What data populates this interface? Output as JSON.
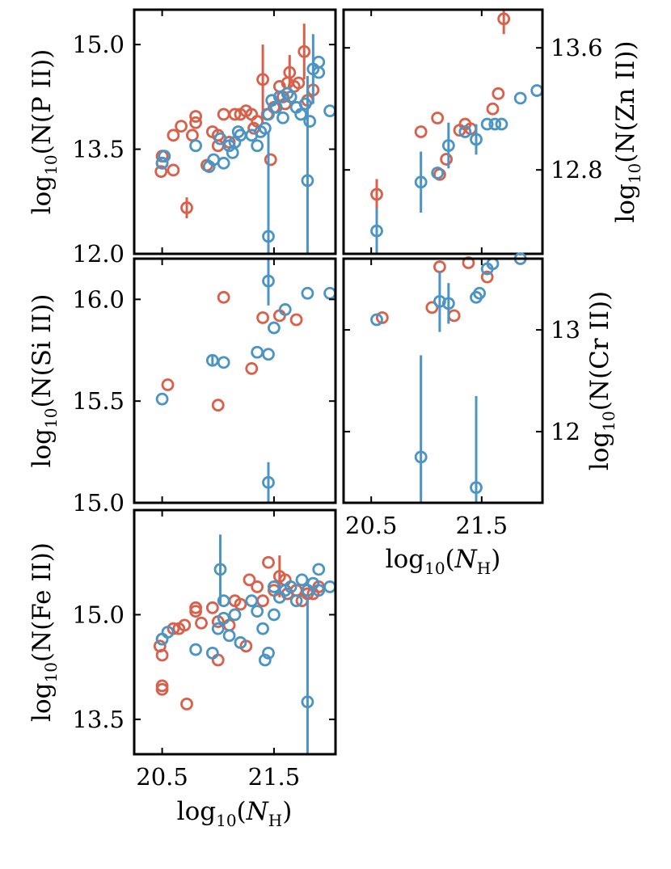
{
  "figure": {
    "colors": {
      "red": "#d9604a",
      "blue": "#4b94c4"
    },
    "xlabel": {
      "prefix": "log",
      "sub": "10",
      "open": "(",
      "N": "N",
      "nsub": "H",
      "close": ")"
    }
  },
  "chart_data": [
    {
      "id": "p2",
      "type": "scatter",
      "ylabel": {
        "prefix": "log",
        "sub": "10",
        "body": "(N(P II))"
      },
      "xlim": [
        20.25,
        22.05
      ],
      "ylim": [
        12.0,
        15.5
      ],
      "xticks": [
        20.5,
        21.5
      ],
      "xtick_labels": [
        "",
        ""
      ],
      "yticks": [
        12.0,
        13.5,
        15.0
      ],
      "ytick_labels": [
        "12.0",
        "13.5",
        "15.0"
      ],
      "series": [
        {
          "name": "red",
          "points": [
            {
              "x": 20.49,
              "y": 13.18
            },
            {
              "x": 20.5,
              "y": 13.3
            },
            {
              "x": 20.5,
              "y": 13.4
            },
            {
              "x": 20.6,
              "y": 13.2
            },
            {
              "x": 20.6,
              "y": 13.7
            },
            {
              "x": 20.67,
              "y": 13.83
            },
            {
              "x": 20.72,
              "y": 12.66,
              "e": 0.15
            },
            {
              "x": 20.77,
              "y": 13.7
            },
            {
              "x": 20.8,
              "y": 13.97
            },
            {
              "x": 20.8,
              "y": 13.88
            },
            {
              "x": 20.9,
              "y": 13.27
            },
            {
              "x": 20.95,
              "y": 13.75
            },
            {
              "x": 21.0,
              "y": 13.55
            },
            {
              "x": 21.0,
              "y": 13.7
            },
            {
              "x": 21.05,
              "y": 14.0
            },
            {
              "x": 21.1,
              "y": 13.6
            },
            {
              "x": 21.15,
              "y": 14.0
            },
            {
              "x": 21.2,
              "y": 14.0
            },
            {
              "x": 21.25,
              "y": 14.05
            },
            {
              "x": 21.3,
              "y": 14.0
            },
            {
              "x": 21.32,
              "y": 13.8
            },
            {
              "x": 21.35,
              "y": 13.9
            },
            {
              "x": 21.4,
              "y": 14.5,
              "e": 0.5
            },
            {
              "x": 21.44,
              "y": 14.0
            },
            {
              "x": 21.47,
              "y": 13.35
            },
            {
              "x": 21.5,
              "y": 14.1
            },
            {
              "x": 21.55,
              "y": 14.4
            },
            {
              "x": 21.58,
              "y": 14.25
            },
            {
              "x": 21.6,
              "y": 14.15
            },
            {
              "x": 21.62,
              "y": 14.45
            },
            {
              "x": 21.64,
              "y": 14.6,
              "e": 0.25
            },
            {
              "x": 21.68,
              "y": 14.4
            },
            {
              "x": 21.72,
              "y": 14.45
            },
            {
              "x": 21.77,
              "y": 14.9,
              "e": 0.4
            },
            {
              "x": 21.8,
              "y": 14.2
            },
            {
              "x": 21.85,
              "y": 14.35
            }
          ]
        },
        {
          "name": "blue",
          "points": [
            {
              "x": 20.5,
              "y": 13.3
            },
            {
              "x": 20.52,
              "y": 13.4
            },
            {
              "x": 20.8,
              "y": 13.55
            },
            {
              "x": 20.92,
              "y": 13.25
            },
            {
              "x": 20.96,
              "y": 13.35
            },
            {
              "x": 21.02,
              "y": 13.65
            },
            {
              "x": 21.05,
              "y": 13.3
            },
            {
              "x": 21.1,
              "y": 13.55
            },
            {
              "x": 21.13,
              "y": 13.45
            },
            {
              "x": 21.15,
              "y": 13.6
            },
            {
              "x": 21.18,
              "y": 13.75
            },
            {
              "x": 21.2,
              "y": 13.7
            },
            {
              "x": 21.3,
              "y": 13.7
            },
            {
              "x": 21.35,
              "y": 13.55
            },
            {
              "x": 21.38,
              "y": 13.75
            },
            {
              "x": 21.42,
              "y": 13.8
            },
            {
              "x": 21.45,
              "y": 14.0
            },
            {
              "x": 21.45,
              "y": 12.25,
              "e": 1.5
            },
            {
              "x": 21.48,
              "y": 14.2
            },
            {
              "x": 21.52,
              "y": 14.1
            },
            {
              "x": 21.55,
              "y": 14.25
            },
            {
              "x": 21.58,
              "y": 13.95
            },
            {
              "x": 21.62,
              "y": 14.3
            },
            {
              "x": 21.65,
              "y": 14.25
            },
            {
              "x": 21.7,
              "y": 14.1
            },
            {
              "x": 21.74,
              "y": 14.0
            },
            {
              "x": 21.78,
              "y": 14.15
            },
            {
              "x": 21.8,
              "y": 13.05,
              "e": 1.5
            },
            {
              "x": 21.82,
              "y": 13.9
            },
            {
              "x": 21.85,
              "y": 14.65,
              "e": 0.5
            },
            {
              "x": 21.9,
              "y": 14.75
            },
            {
              "x": 21.9,
              "y": 14.6
            },
            {
              "x": 22.0,
              "y": 14.05
            }
          ]
        }
      ]
    },
    {
      "id": "zn2",
      "type": "scatter",
      "ylabel": {
        "prefix": "log",
        "sub": "10",
        "body": "(N(Zn II))"
      },
      "xlim": [
        20.25,
        22.05
      ],
      "ylim": [
        12.25,
        13.85
      ],
      "xticks": [
        20.5,
        21.5
      ],
      "xtick_labels": [
        "",
        ""
      ],
      "yticks": [
        12.8,
        13.6
      ],
      "ytick_labels": [
        "12.8",
        "13.6"
      ],
      "series": [
        {
          "name": "red",
          "points": [
            {
              "x": 20.55,
              "y": 12.64,
              "e": 0.1
            },
            {
              "x": 20.95,
              "y": 13.05
            },
            {
              "x": 21.1,
              "y": 13.14
            },
            {
              "x": 21.12,
              "y": 12.77
            },
            {
              "x": 21.18,
              "y": 12.87
            },
            {
              "x": 21.3,
              "y": 13.06
            },
            {
              "x": 21.35,
              "y": 13.1
            },
            {
              "x": 21.4,
              "y": 13.07
            },
            {
              "x": 21.6,
              "y": 13.2
            },
            {
              "x": 21.65,
              "y": 13.3
            },
            {
              "x": 21.7,
              "y": 13.79,
              "e": 0.1
            }
          ]
        },
        {
          "name": "blue",
          "points": [
            {
              "x": 20.55,
              "y": 12.4,
              "e": 0.15
            },
            {
              "x": 20.95,
              "y": 12.72,
              "e": 0.2
            },
            {
              "x": 21.1,
              "y": 12.78
            },
            {
              "x": 21.2,
              "y": 12.96,
              "e": 0.15
            },
            {
              "x": 21.35,
              "y": 13.05
            },
            {
              "x": 21.45,
              "y": 13.0,
              "e": 0.1
            },
            {
              "x": 21.55,
              "y": 13.1
            },
            {
              "x": 21.62,
              "y": 13.1
            },
            {
              "x": 21.68,
              "y": 13.1
            },
            {
              "x": 21.85,
              "y": 13.27
            },
            {
              "x": 22.0,
              "y": 13.32
            }
          ]
        }
      ]
    },
    {
      "id": "si2",
      "type": "scatter",
      "ylabel": {
        "prefix": "log",
        "sub": "10",
        "body": "(N(Si II))"
      },
      "xlim": [
        20.25,
        22.05
      ],
      "ylim": [
        15.0,
        16.2
      ],
      "xticks": [
        20.5,
        21.5
      ],
      "xtick_labels": [
        "",
        ""
      ],
      "yticks": [
        15.0,
        15.5,
        16.0
      ],
      "ytick_labels": [
        "15.0",
        "15.5",
        "16.0"
      ],
      "series": [
        {
          "name": "red",
          "points": [
            {
              "x": 20.55,
              "y": 15.58
            },
            {
              "x": 21.0,
              "y": 15.48
            },
            {
              "x": 21.05,
              "y": 16.01
            },
            {
              "x": 21.3,
              "y": 15.66
            },
            {
              "x": 21.4,
              "y": 15.91
            },
            {
              "x": 21.55,
              "y": 15.92
            },
            {
              "x": 21.7,
              "y": 15.9
            }
          ]
        },
        {
          "name": "blue",
          "points": [
            {
              "x": 20.5,
              "y": 15.51
            },
            {
              "x": 20.95,
              "y": 15.7,
              "e": 0.03
            },
            {
              "x": 21.05,
              "y": 15.69
            },
            {
              "x": 21.35,
              "y": 15.74
            },
            {
              "x": 21.45,
              "y": 15.73
            },
            {
              "x": 21.45,
              "y": 16.09,
              "e": 0.12
            },
            {
              "x": 21.5,
              "y": 15.86
            },
            {
              "x": 21.6,
              "y": 15.95
            },
            {
              "x": 21.8,
              "y": 16.03
            },
            {
              "x": 22.0,
              "y": 16.03
            },
            {
              "x": 21.45,
              "y": 15.1,
              "e": 0.1
            }
          ]
        }
      ]
    },
    {
      "id": "cr2",
      "type": "scatter",
      "ylabel": {
        "prefix": "log",
        "sub": "10",
        "body": "(N(Cr II))"
      },
      "xlim": [
        20.25,
        22.05
      ],
      "ylim": [
        11.3,
        13.7
      ],
      "xticks": [
        20.5,
        21.5
      ],
      "xtick_labels": [
        "20.5",
        "21.5"
      ],
      "yticks": [
        12,
        13
      ],
      "ytick_labels": [
        "12",
        "13"
      ],
      "series": [
        {
          "name": "red",
          "points": [
            {
              "x": 20.6,
              "y": 13.12
            },
            {
              "x": 21.05,
              "y": 13.22
            },
            {
              "x": 21.12,
              "y": 13.62
            },
            {
              "x": 21.25,
              "y": 13.14
            },
            {
              "x": 21.38,
              "y": 13.66
            },
            {
              "x": 21.55,
              "y": 13.52
            },
            {
              "x": 21.65,
              "y": 13.75
            }
          ]
        },
        {
          "name": "blue",
          "points": [
            {
              "x": 20.55,
              "y": 13.1
            },
            {
              "x": 20.95,
              "y": 11.75,
              "e": 1.0
            },
            {
              "x": 21.12,
              "y": 13.28,
              "e": 0.3
            },
            {
              "x": 21.2,
              "y": 13.26,
              "e": 0.2
            },
            {
              "x": 21.45,
              "y": 13.32
            },
            {
              "x": 21.48,
              "y": 13.36
            },
            {
              "x": 21.55,
              "y": 13.6
            },
            {
              "x": 21.6,
              "y": 13.65
            },
            {
              "x": 21.7,
              "y": 13.72
            },
            {
              "x": 21.85,
              "y": 13.7
            },
            {
              "x": 22.0,
              "y": 13.75
            },
            {
              "x": 21.45,
              "y": 11.45,
              "e": 0.9
            }
          ]
        }
      ]
    },
    {
      "id": "fe2",
      "type": "scatter",
      "ylabel": {
        "prefix": "log",
        "sub": "10",
        "body": "(N(Fe II))"
      },
      "xlim": [
        20.25,
        22.05
      ],
      "ylim": [
        13.0,
        16.5
      ],
      "xticks": [
        20.5,
        21.5
      ],
      "xtick_labels": [
        "20.5",
        "21.5"
      ],
      "yticks": [
        13.5,
        15.0
      ],
      "ytick_labels": [
        "13.5",
        "15.0"
      ],
      "series": [
        {
          "name": "red",
          "points": [
            {
              "x": 20.48,
              "y": 14.55
            },
            {
              "x": 20.5,
              "y": 14.42
            },
            {
              "x": 20.5,
              "y": 14.65
            },
            {
              "x": 20.5,
              "y": 13.98
            },
            {
              "x": 20.5,
              "y": 13.93
            },
            {
              "x": 20.6,
              "y": 14.8
            },
            {
              "x": 20.65,
              "y": 14.8
            },
            {
              "x": 20.7,
              "y": 14.85
            },
            {
              "x": 20.72,
              "y": 13.72
            },
            {
              "x": 20.8,
              "y": 15.05
            },
            {
              "x": 20.8,
              "y": 15.1
            },
            {
              "x": 20.85,
              "y": 14.88
            },
            {
              "x": 20.95,
              "y": 15.1
            },
            {
              "x": 21.0,
              "y": 14.9
            },
            {
              "x": 21.0,
              "y": 14.35
            },
            {
              "x": 21.1,
              "y": 14.85
            },
            {
              "x": 21.15,
              "y": 15.2
            },
            {
              "x": 21.2,
              "y": 15.15
            },
            {
              "x": 21.25,
              "y": 14.55
            },
            {
              "x": 21.28,
              "y": 15.5
            },
            {
              "x": 21.35,
              "y": 15.4
            },
            {
              "x": 21.4,
              "y": 15.2
            },
            {
              "x": 21.45,
              "y": 15.75
            },
            {
              "x": 21.5,
              "y": 15.35
            },
            {
              "x": 21.55,
              "y": 15.55,
              "e": 0.3
            },
            {
              "x": 21.6,
              "y": 15.5
            },
            {
              "x": 21.62,
              "y": 15.3
            },
            {
              "x": 21.7,
              "y": 15.35
            },
            {
              "x": 21.75,
              "y": 15.2
            },
            {
              "x": 21.8,
              "y": 15.3
            },
            {
              "x": 21.85,
              "y": 15.3
            },
            {
              "x": 21.9,
              "y": 15.4
            }
          ]
        },
        {
          "name": "blue",
          "points": [
            {
              "x": 20.5,
              "y": 14.65
            },
            {
              "x": 20.55,
              "y": 14.75
            },
            {
              "x": 20.8,
              "y": 14.5
            },
            {
              "x": 20.95,
              "y": 14.45
            },
            {
              "x": 21.0,
              "y": 14.8
            },
            {
              "x": 21.02,
              "y": 15.65,
              "e": 0.5
            },
            {
              "x": 21.05,
              "y": 15.2
            },
            {
              "x": 21.05,
              "y": 14.95
            },
            {
              "x": 21.1,
              "y": 14.7
            },
            {
              "x": 21.15,
              "y": 15.0
            },
            {
              "x": 21.2,
              "y": 14.6
            },
            {
              "x": 21.3,
              "y": 15.2
            },
            {
              "x": 21.35,
              "y": 15.05
            },
            {
              "x": 21.4,
              "y": 14.8
            },
            {
              "x": 21.42,
              "y": 14.35
            },
            {
              "x": 21.45,
              "y": 14.45
            },
            {
              "x": 21.5,
              "y": 15.4
            },
            {
              "x": 21.5,
              "y": 15.0
            },
            {
              "x": 21.55,
              "y": 15.25
            },
            {
              "x": 21.6,
              "y": 15.35
            },
            {
              "x": 21.65,
              "y": 15.4
            },
            {
              "x": 21.7,
              "y": 15.2
            },
            {
              "x": 21.75,
              "y": 15.5
            },
            {
              "x": 21.8,
              "y": 15.35
            },
            {
              "x": 21.8,
              "y": 13.75,
              "e": 1.5
            },
            {
              "x": 21.85,
              "y": 15.45
            },
            {
              "x": 21.9,
              "y": 15.35
            },
            {
              "x": 21.9,
              "y": 15.65
            },
            {
              "x": 22.0,
              "y": 15.4
            }
          ]
        }
      ]
    }
  ]
}
